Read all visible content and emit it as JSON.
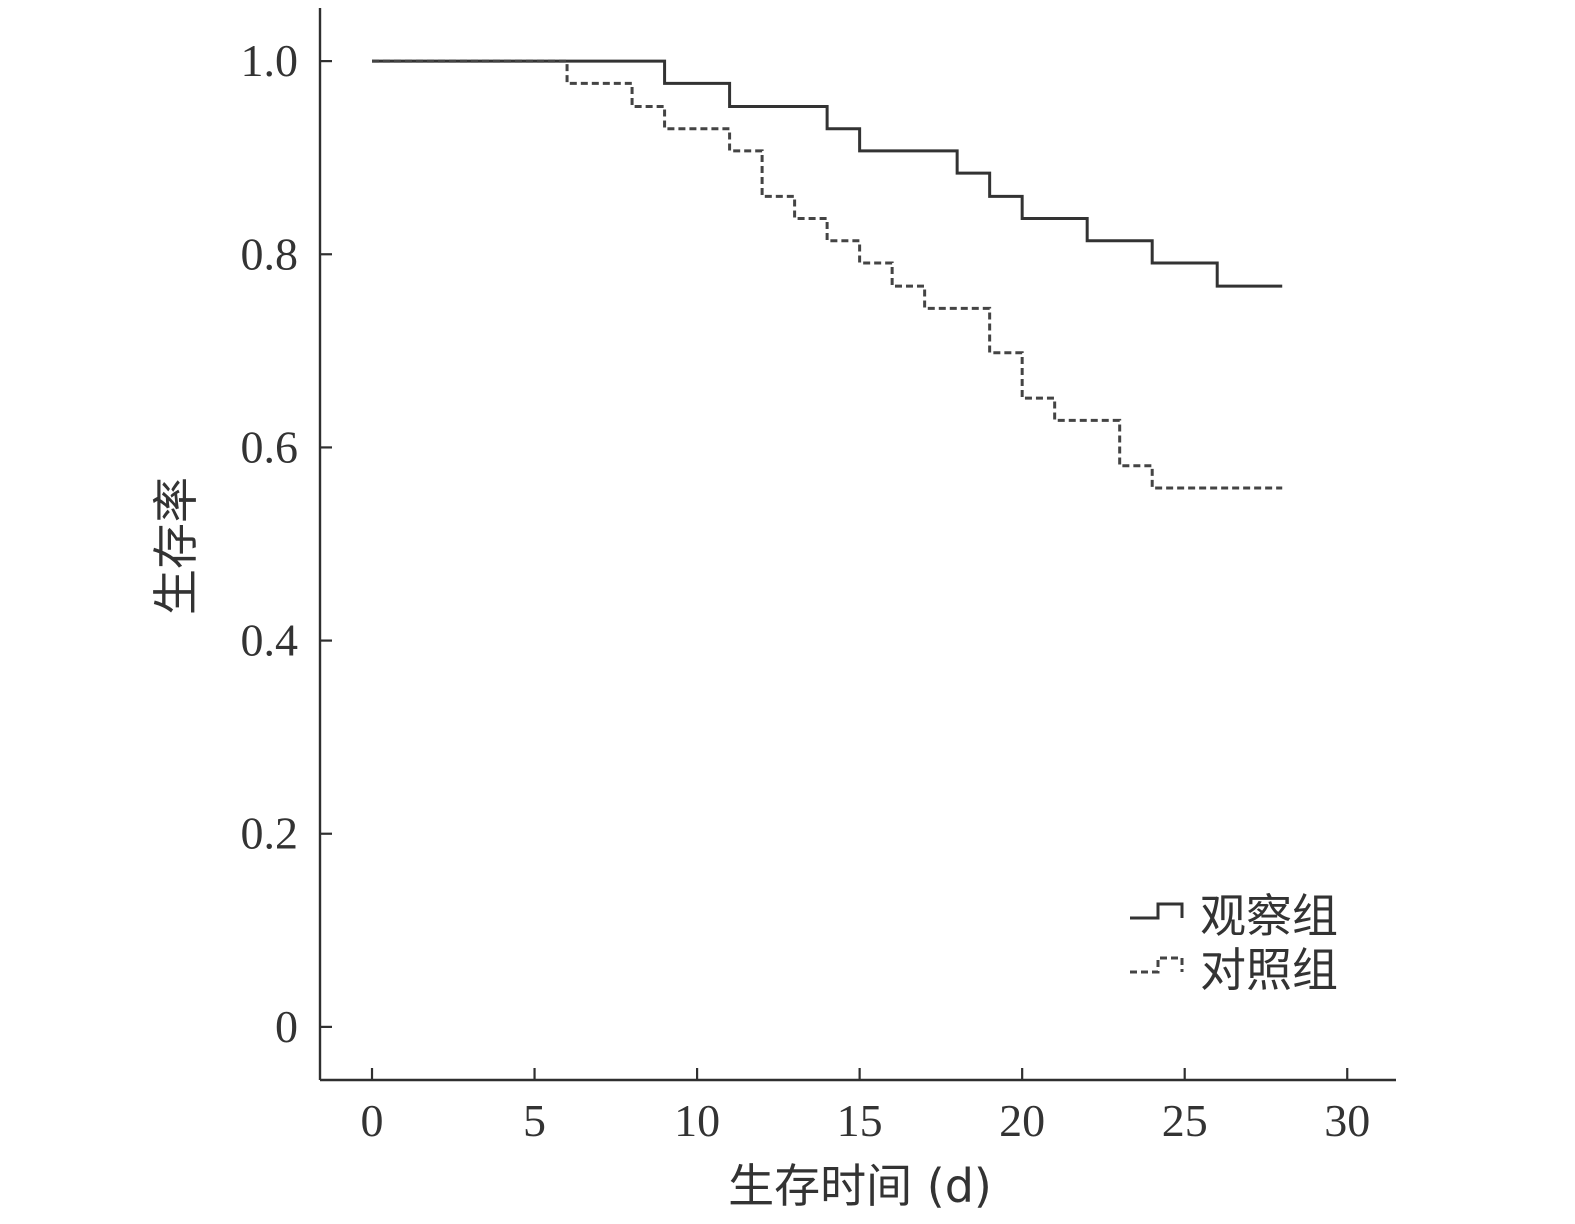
{
  "chart_data": {
    "type": "line",
    "subtype": "kaplan-meier-step",
    "title": "",
    "xlabel": "生存时间 (d)",
    "ylabel": "生存率",
    "xlim": [
      -1.6,
      31.5
    ],
    "ylim": [
      -0.055,
      1.055
    ],
    "x_ticks": [
      0,
      5,
      10,
      15,
      20,
      25,
      30
    ],
    "x_tick_labels": [
      "0",
      "5",
      "10",
      "15",
      "20",
      "25",
      "30"
    ],
    "y_ticks": [
      0,
      0.2,
      0.4,
      0.6,
      0.8,
      1.0
    ],
    "y_tick_labels": [
      "0",
      "0.2",
      "0.4",
      "0.6",
      "0.8",
      "1.0"
    ],
    "grid": false,
    "legend_position": "bottom-right",
    "series": [
      {
        "name": "观察组",
        "line_style": "solid",
        "color": "#333333",
        "points": [
          [
            0,
            1.0
          ],
          [
            9,
            0.977
          ],
          [
            11,
            0.953
          ],
          [
            14,
            0.93
          ],
          [
            15,
            0.907
          ],
          [
            18,
            0.884
          ],
          [
            19,
            0.86
          ],
          [
            20,
            0.837
          ],
          [
            22,
            0.814
          ],
          [
            24,
            0.791
          ],
          [
            26,
            0.767
          ],
          [
            28,
            0.767
          ]
        ]
      },
      {
        "name": "对照组",
        "line_style": "dashed",
        "color": "#444444",
        "points": [
          [
            0,
            1.0
          ],
          [
            6,
            0.977
          ],
          [
            8,
            0.953
          ],
          [
            9,
            0.93
          ],
          [
            11,
            0.907
          ],
          [
            12,
            0.86
          ],
          [
            13,
            0.837
          ],
          [
            14,
            0.814
          ],
          [
            15,
            0.791
          ],
          [
            16,
            0.767
          ],
          [
            17,
            0.744
          ],
          [
            19,
            0.698
          ],
          [
            20,
            0.651
          ],
          [
            21,
            0.628
          ],
          [
            23,
            0.581
          ],
          [
            24,
            0.558
          ],
          [
            28,
            0.558
          ]
        ]
      }
    ]
  }
}
